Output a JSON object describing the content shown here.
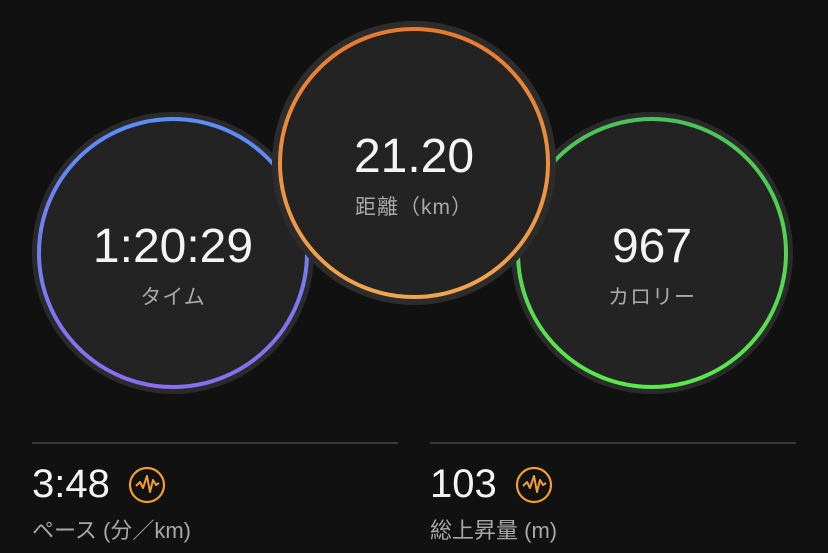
{
  "gauges": [
    {
      "id": "time",
      "value": "1:20:29",
      "label": "タイム",
      "colors": [
        "#5b8ef5",
        "#8a6df0"
      ]
    },
    {
      "id": "distance",
      "value": "21.20",
      "label": "距離（km）",
      "colors": [
        "#e87a30",
        "#f0a550"
      ]
    },
    {
      "id": "calories",
      "value": "967",
      "label": "カロリー",
      "colors": [
        "#4cc35a",
        "#5ae84a"
      ]
    }
  ],
  "stats": [
    {
      "value": "3:48",
      "label": "ペース (分／km)",
      "icon": "activity-pulse-icon",
      "icon_color": "#f0a030"
    },
    {
      "value": "103",
      "label": "総上昇量 (m)",
      "icon": "activity-pulse-icon",
      "icon_color": "#f0a030"
    }
  ]
}
